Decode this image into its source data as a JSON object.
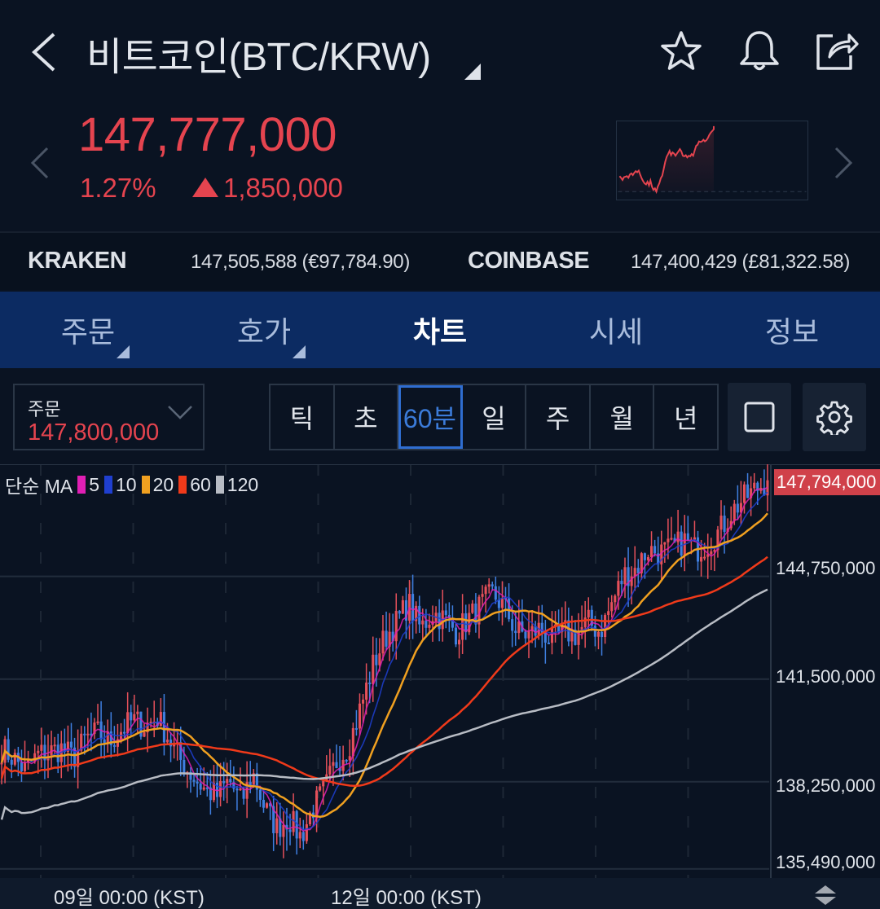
{
  "header": {
    "title": "비트코인(BTC/KRW)",
    "icons": [
      "back-icon",
      "star-icon",
      "bell-icon",
      "share-icon"
    ]
  },
  "quote": {
    "price": "147,777,000",
    "change_pct": "1.27%",
    "change_abs": "1,850,000",
    "direction": "up",
    "color_up": "#e5444f"
  },
  "exchanges": [
    {
      "name": "KRAKEN",
      "value": "147,505,588 (€97,784.90)"
    },
    {
      "name": "COINBASE",
      "value": "147,400,429 (£81,322.58)"
    }
  ],
  "tabs": [
    {
      "label": "주문",
      "has_dropdown": true,
      "active": false
    },
    {
      "label": "호가",
      "has_dropdown": true,
      "active": false
    },
    {
      "label": "차트",
      "has_dropdown": false,
      "active": true
    },
    {
      "label": "시세",
      "has_dropdown": false,
      "active": false
    },
    {
      "label": "정보",
      "has_dropdown": false,
      "active": false
    }
  ],
  "controls": {
    "order_label": "주문",
    "order_value": "147,800,000",
    "periods": [
      "틱",
      "초",
      "60분",
      "일",
      "주",
      "월",
      "년"
    ],
    "active_period": "60분"
  },
  "chart_data": {
    "type": "candlestick",
    "title": "",
    "interval": "60분",
    "legend": {
      "prefix": "단순 MA",
      "items": [
        {
          "label": "5",
          "color": "#e01fb4"
        },
        {
          "label": "10",
          "color": "#1f3fd0"
        },
        {
          "label": "20",
          "color": "#f0a020"
        },
        {
          "label": "60",
          "color": "#f03a1a"
        },
        {
          "label": "120",
          "color": "#b8bcc4"
        }
      ]
    },
    "last_price": "147,794,000",
    "y_ticks": [
      "144,750,000",
      "141,500,000",
      "138,250,000",
      "135,490,000"
    ],
    "y_tick_values": [
      144750000,
      141500000,
      138250000,
      135490000
    ],
    "ylim": [
      135200000,
      148300000
    ],
    "x_labels": [
      "09일 00:00 (KST)",
      "12일 00:00 (KST)"
    ],
    "up_color": "#e5505a",
    "down_color": "#3f7fe0",
    "close_series_approx": [
      139.3,
      139.0,
      138.6,
      139.1,
      139.2,
      139.3,
      139.0,
      139.6,
      139.8,
      139.5,
      139.9,
      140.2,
      140.0,
      140.3,
      139.6,
      138.9,
      138.4,
      138.0,
      137.8,
      138.3,
      137.6,
      138.5,
      137.4,
      136.8,
      137.1,
      136.5,
      137.4,
      138.0,
      138.9,
      139.4,
      140.6,
      141.9,
      142.8,
      143.3,
      143.9,
      143.1,
      143.6,
      143.4,
      143.0,
      143.4,
      143.8,
      144.2,
      143.8,
      143.0,
      142.9,
      143.1,
      142.7,
      143.0,
      142.9,
      143.3,
      143.0,
      143.9,
      144.8,
      145.0,
      145.6,
      145.5,
      145.6,
      145.9,
      145.6,
      145.8,
      146.2,
      146.8,
      147.2,
      147.5,
      147.79
    ],
    "ma_values_right_edge": {
      "ma5": 147500000,
      "ma10": 147300000,
      "ma20": 146800000,
      "ma60": 144800000,
      "ma120": 143200000
    }
  }
}
